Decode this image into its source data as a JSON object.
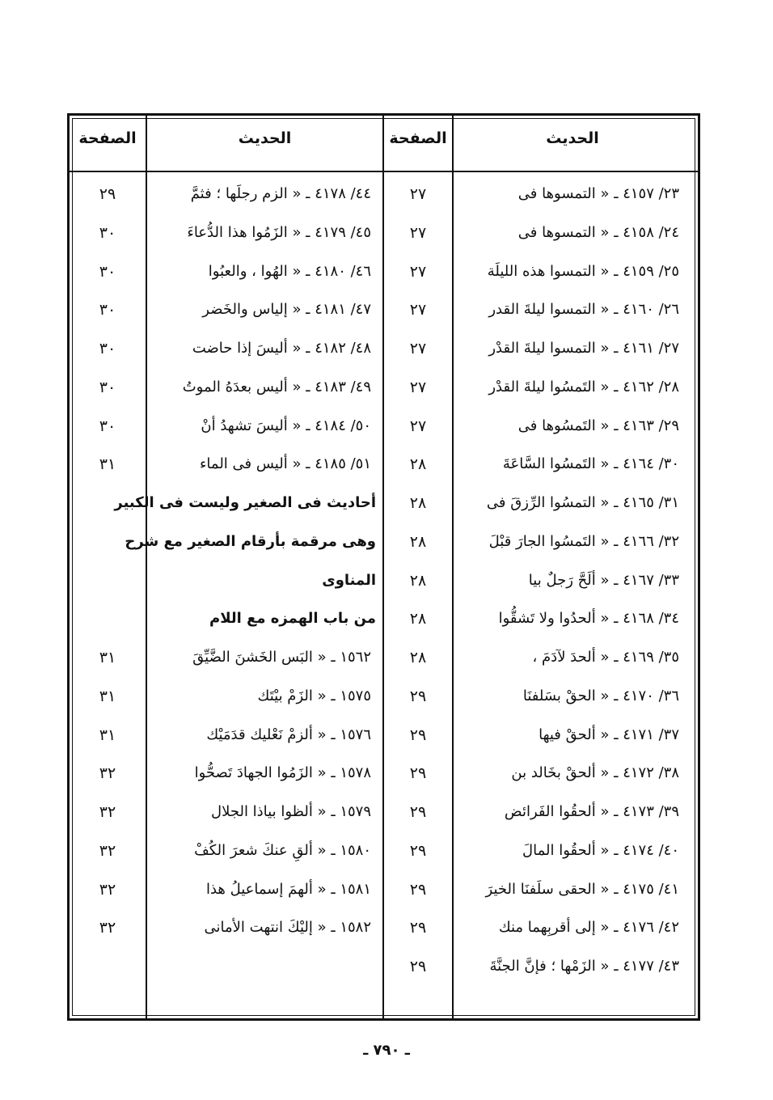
{
  "table": {
    "headers": [
      "الحديث",
      "الصفحة",
      "الحديث",
      "الصفحة"
    ],
    "right": [
      {
        "text": "٢٣/ ٤١٥٧ ـ « التمسوها فى",
        "page": "٢٧"
      },
      {
        "text": "٢٤/ ٤١٥٨ ـ « التمسوها فى",
        "page": "٢٧"
      },
      {
        "text": "٢٥/ ٤١٥٩ ـ « التمسوا هذه الليلَة",
        "page": "٢٧"
      },
      {
        "text": "٢٦/ ٤١٦٠ ـ « التمسوا ليلةَ القدر",
        "page": "٢٧"
      },
      {
        "text": "٢٧/ ٤١٦١ ـ « التمسوا ليلةَ القدْر",
        "page": "٢٧"
      },
      {
        "text": "٢٨/ ٤١٦٢ ـ « التَمسُوا ليلةَ القدْر",
        "page": "٢٧"
      },
      {
        "text": "٢٩/ ٤١٦٣ ـ « التَمسُوها فى",
        "page": "٢٧"
      },
      {
        "text": "٣٠/ ٤١٦٤ ـ « التَمسُوا السَّاعَةَ",
        "page": "٢٨"
      },
      {
        "text": "٣١/ ٤١٦٥ ـ « التمسُوا الرِّزقَ فى",
        "page": "٢٨"
      },
      {
        "text": "٣٢/ ٤١٦٦ ـ « التَمسُوا الجارَ قبْلَ",
        "page": "٢٨"
      },
      {
        "text": "٣٣/ ٤١٦٧ ـ « ألَحَّ رَجلٌ بيا",
        "page": "٢٨"
      },
      {
        "text": "٣٤/ ٤١٦٨ ـ « ألحدُوا ولا تَشقُّوا",
        "page": "٢٨"
      },
      {
        "text": "٣٥/ ٤١٦٩ ـ « ألحدَ لآدَمَ ،",
        "page": "٢٨"
      },
      {
        "text": "٣٦/ ٤١٧٠ ـ « الحقْ بسَلفنَا",
        "page": "٢٩"
      },
      {
        "text": "٣٧/ ٤١٧١ ـ « ألحقْ فيها",
        "page": "٢٩"
      },
      {
        "text": "٣٨/ ٤١٧٢ ـ « ألحقْ بخَالد بن",
        "page": "٢٩"
      },
      {
        "text": "٣٩/ ٤١٧٣ ـ « ألحقُوا الفَرائض",
        "page": "٢٩"
      },
      {
        "text": "٤٠/ ٤١٧٤ ـ « ألحقُوا المالَ",
        "page": "٢٩"
      },
      {
        "text": "٤١/ ٤١٧٥ ـ « الحقى سلَفنَا الخيرَ",
        "page": "٢٩"
      },
      {
        "text": "٤٢/ ٤١٧٦ ـ « إلى أقربِهما منك",
        "page": "٢٩"
      },
      {
        "text": "٤٣/ ٤١٧٧ ـ « الزَمْها ؛ فإنَّ الجنَّةَ",
        "page": "٢٩"
      }
    ],
    "left": [
      {
        "text": "٤٤/ ٤١٧٨ ـ « الزم رجلَها ؛ فثمَّ",
        "page": "٢٩"
      },
      {
        "text": "٤٥/ ٤١٧٩ ـ « الزَمُوا هذا الدُّعاءَ",
        "page": "٣٠"
      },
      {
        "text": "٤٦/ ٤١٨٠ ـ « الهُوا ، والعبُوا",
        "page": "٣٠"
      },
      {
        "text": "٤٧/ ٤١٨١ ـ « إلياس والخَضر",
        "page": "٣٠"
      },
      {
        "text": "٤٨/ ٤١٨٢ ـ « أليسَ إذا حاضت",
        "page": "٣٠"
      },
      {
        "text": "٤٩/ ٤١٨٣ ـ « أليس بعدَهُ الموتُ",
        "page": "٣٠"
      },
      {
        "text": "٥٠/ ٤١٨٤ ـ « أليسَ تشهدُ أنْ",
        "page": "٣٠"
      },
      {
        "text": "٥١/ ٤١٨٥ ـ « أليس فى الماء",
        "page": "٣١"
      },
      {
        "heading": "أحاديث فى الصغير وليست فى الكبير"
      },
      {
        "heading": "وهى مرقمة بأرقام الصغير مع شرح"
      },
      {
        "heading": "المناوى"
      },
      {
        "heading": "من باب الهمزه مع اللام"
      },
      {
        "text": "١٥٦٢ ـ « البَس الخَشنَ الضَّيِّقَ",
        "page": "٣١"
      },
      {
        "text": "١٥٧٥ ـ « الزَمْ بيْتَك",
        "page": "٣١"
      },
      {
        "text": "١٥٧٦ ـ « ألزمْ نَعْليك قدَمَيْك",
        "page": "٣١"
      },
      {
        "text": "١٥٧٨ ـ « الزَمُوا الجهادَ تَصحُّوا",
        "page": "٣٢"
      },
      {
        "text": "١٥٧٩ ـ « ألظوا بياذا الجلال",
        "page": "٣٢"
      },
      {
        "text": "١٥٨٠ ـ « ألقِ عنكَ شعرَ الكُفْ",
        "page": "٣٢"
      },
      {
        "text": "١٥٨١ ـ « ألهمَ إسماعيلُ هذا",
        "page": "٣٢"
      },
      {
        "text": "١٥٨٢ ـ « إليْكَ انتهت الأمانى",
        "page": "٣٢"
      }
    ]
  },
  "page_number": "ـ ٧٩٠ ـ"
}
